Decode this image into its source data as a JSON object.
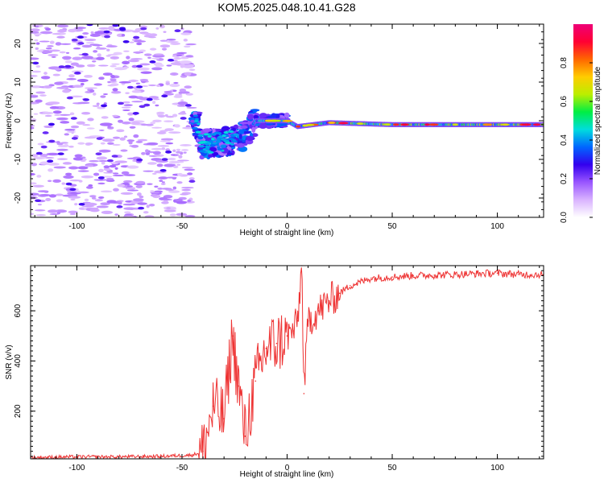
{
  "figure_title": "KOM5.2025.048.10.41.G28",
  "chart_data": [
    {
      "type": "heatmap",
      "title": "KOM5.2025.048.10.41.G28",
      "xlabel": "Height of straight line (km)",
      "ylabel": "Frequency (Hz)",
      "xlim": [
        -122,
        122
      ],
      "ylim": [
        -25,
        25
      ],
      "xticks": [
        -100,
        -50,
        0,
        50,
        100
      ],
      "yticks": [
        -20,
        -10,
        0,
        10,
        20
      ],
      "colorbar": {
        "label": "Normalized spectral amplitude",
        "range": [
          0,
          1
        ],
        "ticks": [
          0.0,
          0.2,
          0.4,
          0.6,
          0.8
        ],
        "colors": [
          "#ffffff",
          "#d9b3ff",
          "#9955ff",
          "#3300ee",
          "#0066ff",
          "#00dddd",
          "#00ee44",
          "#bbee00",
          "#ffcc00",
          "#ff6600",
          "#ff0033",
          "#ee0077"
        ]
      },
      "dominant_ridge": [
        {
          "x": -42,
          "f": -6
        },
        {
          "x": -30,
          "f": -5.5
        },
        {
          "x": -20,
          "f": -4
        },
        {
          "x": -15,
          "f": 0
        },
        {
          "x": 0,
          "f": 0
        },
        {
          "x": 5,
          "f": -1.5
        },
        {
          "x": 20,
          "f": -0.5
        },
        {
          "x": 50,
          "f": -1
        },
        {
          "x": 100,
          "f": -1
        },
        {
          "x": 122,
          "f": -1
        }
      ],
      "grid": false,
      "legend": "none"
    },
    {
      "type": "line",
      "xlabel": "Height of straight line (km)",
      "ylabel": "SNR (v/v)",
      "xlim": [
        -122,
        122
      ],
      "ylim": [
        10,
        780
      ],
      "xticks": [
        -100,
        -50,
        0,
        50,
        100
      ],
      "yticks": [
        200,
        400,
        600
      ],
      "color": "#ee3333",
      "series": [
        {
          "x": [
            -122,
            -100,
            -80,
            -60,
            -45,
            -40,
            -35,
            -30,
            -26,
            -23,
            -20,
            -15,
            -10,
            -5,
            0,
            3,
            5,
            7,
            8,
            10,
            15,
            20,
            25,
            30,
            40,
            50,
            60,
            70,
            80,
            90,
            100,
            110,
            122
          ],
          "values": [
            15,
            18,
            18,
            20,
            25,
            40,
            220,
            170,
            500,
            300,
            100,
            320,
            450,
            470,
            500,
            520,
            560,
            780,
            270,
            560,
            600,
            640,
            670,
            700,
            730,
            735,
            740,
            742,
            745,
            748,
            750,
            745,
            745
          ]
        }
      ],
      "grid": false,
      "legend": "none"
    }
  ]
}
